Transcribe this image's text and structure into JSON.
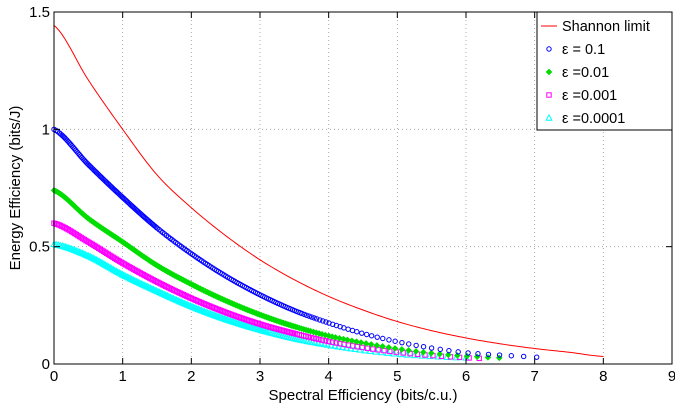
{
  "chart_data": {
    "type": "line",
    "title": "",
    "xlabel": "Spectral Efficiency (bits/c.u.)",
    "ylabel": "Energy Efficiency (bits/J)",
    "xlim": [
      0,
      9
    ],
    "ylim": [
      0,
      1.5
    ],
    "xticks": [
      "0",
      "1",
      "2",
      "3",
      "4",
      "5",
      "6",
      "7",
      "8",
      "9"
    ],
    "yticks": [
      "0",
      "0.5",
      "1",
      "1.5"
    ],
    "grid": true,
    "legend_position": "top-right",
    "series": [
      {
        "name": "Shannon limit",
        "style": "line",
        "color": "#ff0000",
        "marker": "none",
        "x": [
          0,
          0.5,
          1,
          1.5,
          2,
          2.5,
          3,
          3.5,
          4,
          4.5,
          5,
          5.5,
          6,
          6.5,
          7,
          7.5,
          8
        ],
        "y": [
          1.443,
          1.21,
          1.0,
          0.806,
          0.666,
          0.547,
          0.444,
          0.359,
          0.288,
          0.23,
          0.181,
          0.142,
          0.111,
          0.086,
          0.066,
          0.05,
          0.032
        ]
      },
      {
        "name": "ε = 0.1",
        "style": "markers",
        "color": "#0000ff",
        "marker": "circle",
        "x": [
          0,
          0.5,
          1,
          1.5,
          2,
          2.5,
          3,
          3.5,
          4,
          4.5,
          5,
          5.5,
          6,
          6.5,
          7,
          7.2
        ],
        "y": [
          1.0,
          0.85,
          0.71,
          0.58,
          0.47,
          0.375,
          0.295,
          0.228,
          0.175,
          0.13,
          0.095,
          0.068,
          0.048,
          0.038,
          0.03,
          0.026
        ]
      },
      {
        "name": "ε =0.01",
        "style": "markers",
        "color": "#00dd00",
        "marker": "diamond",
        "x": [
          0,
          0.5,
          1,
          1.5,
          2,
          2.5,
          3,
          3.5,
          4,
          4.5,
          5,
          5.5,
          6,
          6.5,
          6.6
        ],
        "y": [
          0.74,
          0.62,
          0.52,
          0.42,
          0.34,
          0.27,
          0.21,
          0.16,
          0.12,
          0.09,
          0.065,
          0.046,
          0.034,
          0.026,
          0.025
        ]
      },
      {
        "name": "ε =0.001",
        "style": "markers",
        "color": "#ff00ff",
        "marker": "square",
        "x": [
          0,
          0.5,
          1,
          1.5,
          2,
          2.5,
          3,
          3.5,
          4,
          4.5,
          5,
          5.5,
          6,
          6.2
        ],
        "y": [
          0.6,
          0.52,
          0.43,
          0.35,
          0.28,
          0.22,
          0.17,
          0.13,
          0.096,
          0.07,
          0.05,
          0.036,
          0.027,
          0.024
        ]
      },
      {
        "name": "ε =0.0001",
        "style": "markers",
        "color": "#00ffff",
        "marker": "triangle",
        "x": [
          0,
          0.5,
          1,
          1.5,
          2,
          2.5,
          3,
          3.5,
          4,
          4.5,
          5,
          5.5,
          6
        ],
        "y": [
          0.51,
          0.46,
          0.38,
          0.31,
          0.245,
          0.19,
          0.145,
          0.108,
          0.08,
          0.058,
          0.042,
          0.032,
          0.026
        ]
      }
    ]
  }
}
